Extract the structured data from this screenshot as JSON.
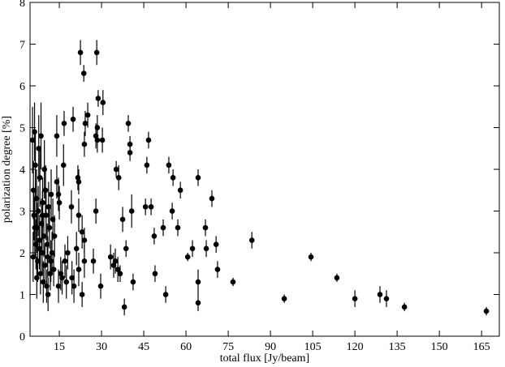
{
  "chart_data": {
    "type": "scatter",
    "x_label": "total flux [Jy/beam]",
    "y_label": "polarization degree [%]",
    "xlim": [
      4.6,
      171.3
    ],
    "ylim": [
      0,
      8
    ],
    "xticks": [
      15,
      30,
      45,
      60,
      75,
      90,
      105,
      120,
      135,
      150,
      165
    ],
    "yticks": [
      0,
      1,
      2,
      3,
      4,
      5,
      6,
      7,
      8
    ],
    "series": [
      {
        "color": "#000000",
        "x": [
          22.5,
          28.3,
          23.7,
          28.8,
          30.5,
          25.1,
          19.9,
          24.2,
          16.7,
          28.5,
          39.5,
          14.1,
          28,
          28.5,
          30.3,
          46.7,
          23.9,
          40.1,
          40.1,
          46.1,
          53.9,
          16.5,
          35.2,
          36.1,
          55.4,
          64.3,
          21.6,
          21.9,
          14.1,
          58,
          14.7,
          69.2,
          15,
          45.6,
          47.6,
          19.3,
          28,
          40.7,
          55.1,
          21.9,
          37.5,
          57.1,
          66.9,
          23.1,
          51.9,
          48.7,
          23.9,
          83.4,
          70.7,
          38.7,
          62.3,
          67.2,
          21.1,
          60.6,
          104.4,
          33.2,
          23.9,
          27.1,
          34.9,
          34.3,
          71.2,
          35.8,
          21.9,
          36.6,
          49,
          113.6,
          76.7,
          41.2,
          64.3,
          29.7,
          20.2,
          14.7,
          52.8,
          23.1,
          128.9,
          94.9,
          120,
          131.2,
          137.6,
          38.1,
          64.3,
          166.7,
          5.5,
          5.8,
          6,
          6.2,
          6.5,
          6.7,
          6.9,
          7.1,
          7.3,
          7.5,
          7.7,
          7.9,
          8.1,
          8.3,
          8.5,
          8.7,
          8.9,
          9.1,
          9.3,
          9.5,
          9.7,
          9.9,
          10.1,
          10.3,
          10.5,
          10.7,
          10.9,
          11.2,
          11.5,
          11.8,
          12.1,
          12.4,
          12.7,
          13,
          13.3,
          5.7,
          6.3,
          7,
          8,
          9,
          11,
          12,
          16,
          17,
          18,
          15.5,
          19.5,
          17.5
        ],
        "values": [
          6.8,
          6.8,
          6.3,
          5.7,
          5.6,
          5.3,
          5.2,
          5.1,
          5.1,
          5.0,
          5.1,
          4.8,
          4.8,
          4.7,
          4.7,
          4.7,
          4.6,
          4.6,
          4.4,
          4.1,
          4.1,
          4.1,
          4.0,
          3.8,
          3.8,
          3.8,
          3.8,
          3.7,
          3.7,
          3.5,
          3.4,
          3.3,
          3.2,
          3.1,
          3.1,
          3.1,
          3.0,
          3.0,
          3.0,
          2.9,
          2.8,
          2.6,
          2.6,
          2.5,
          2.6,
          2.4,
          2.3,
          2.3,
          2.2,
          2.1,
          2.1,
          2.1,
          2.1,
          1.9,
          1.9,
          1.9,
          1.8,
          1.8,
          1.8,
          1.7,
          1.6,
          1.6,
          1.6,
          1.5,
          1.5,
          1.4,
          1.3,
          1.3,
          1.3,
          1.2,
          1.2,
          1.2,
          1.0,
          1.0,
          1.0,
          0.9,
          0.9,
          0.9,
          0.7,
          0.7,
          0.8,
          0.6,
          4.7,
          3.5,
          2.9,
          4.9,
          4.1,
          2.2,
          3.3,
          2.6,
          1.8,
          3.0,
          4.5,
          2.1,
          3.8,
          1.5,
          4.8,
          2.7,
          2.0,
          3.2,
          1.3,
          2.4,
          4.0,
          1.7,
          3.5,
          2.9,
          1.2,
          2.2,
          1.9,
          3.1,
          2.6,
          1.5,
          3.4,
          2.0,
          2.8,
          1.6,
          2.4,
          1.9,
          2.6,
          1.4,
          2.3,
          2.9,
          1.0,
          1.8,
          1.4,
          1.8,
          2.0,
          1.5,
          1.4,
          1.3
        ],
        "errors": [
          0.3,
          0.3,
          0.2,
          0.2,
          0.3,
          0.3,
          0.3,
          0.3,
          0.3,
          0.3,
          0.2,
          0.5,
          0.3,
          0.3,
          0.3,
          0.2,
          0.3,
          0.2,
          0.2,
          0.2,
          0.2,
          0.5,
          0.2,
          0.3,
          0.2,
          0.2,
          0.3,
          0.3,
          0.4,
          0.2,
          0.4,
          0.2,
          0.4,
          0.2,
          0.2,
          0.4,
          0.3,
          0.4,
          0.2,
          0.4,
          0.3,
          0.2,
          0.2,
          0.4,
          0.2,
          0.2,
          0.3,
          0.2,
          0.2,
          0.2,
          0.2,
          0.2,
          0.4,
          0.1,
          0.1,
          0.3,
          0.4,
          0.3,
          0.3,
          0.3,
          0.2,
          0.3,
          0.4,
          0.2,
          0.2,
          0.1,
          0.1,
          0.2,
          0.3,
          0.3,
          0.4,
          0.4,
          0.2,
          0.3,
          0.2,
          0.1,
          0.2,
          0.2,
          0.1,
          0.2,
          0.2,
          0.1,
          0.8,
          0.7,
          0.6,
          0.7,
          0.8,
          0.6,
          0.7,
          0.6,
          0.5,
          0.6,
          0.8,
          0.5,
          0.7,
          0.5,
          0.8,
          0.6,
          0.5,
          0.6,
          0.5,
          0.5,
          0.7,
          0.5,
          0.6,
          0.6,
          0.4,
          0.5,
          0.5,
          0.6,
          0.5,
          0.4,
          0.6,
          0.5,
          0.5,
          0.4,
          0.5,
          0.6,
          0.7,
          0.5,
          0.6,
          0.6,
          0.4,
          0.5,
          0.4,
          0.4,
          0.4,
          0.4,
          0.4,
          0.4
        ]
      }
    ]
  }
}
